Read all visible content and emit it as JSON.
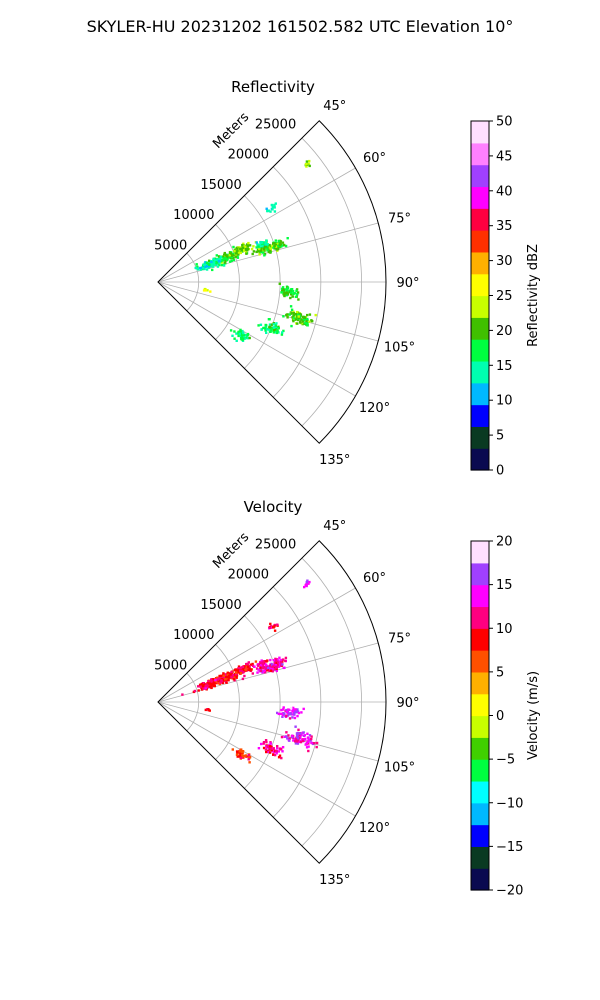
{
  "figure": {
    "title": "SKYLER-HU  20231202  161502.582 UTC Elevation 10°"
  },
  "chart_data": [
    {
      "type": "polar-sector",
      "title": "Reflectivity",
      "range_label": "Meters",
      "theta_range_deg": [
        45,
        135
      ],
      "r_max_m": 28000,
      "theta_ticks": [
        "45°",
        "60°",
        "75°",
        "90°",
        "105°",
        "120°",
        "135°"
      ],
      "theta_tick_values": [
        45,
        60,
        75,
        90,
        105,
        120,
        135
      ],
      "r_ticks": [
        "5000",
        "10000",
        "15000",
        "20000",
        "25000"
      ],
      "r_tick_values": [
        5000,
        10000,
        15000,
        20000,
        25000
      ],
      "grid": true,
      "colorbar": {
        "label": "Reflectivity dBZ",
        "ticks": [
          "0",
          "5",
          "10",
          "15",
          "20",
          "25",
          "30",
          "35",
          "40",
          "45",
          "50"
        ],
        "range": [
          0,
          50
        ],
        "stops": [
          "#0a0a50",
          "#0a3a22",
          "#0000ff",
          "#00b8ff",
          "#00ffb0",
          "#00ff40",
          "#40c000",
          "#c8ff00",
          "#ffff00",
          "#ffb000",
          "#ff3000",
          "#ff0040",
          "#ff00ff",
          "#a040ff",
          "#ff80ff",
          "#ffe0ff"
        ]
      },
      "echoes": [
        {
          "az": 69,
          "r": 8500,
          "dr": 2600,
          "da": 3.5,
          "v": 19,
          "n": 150
        },
        {
          "az": 70,
          "r": 6500,
          "dr": 1800,
          "da": 4,
          "v": 14,
          "n": 80
        },
        {
          "az": 67.5,
          "r": 11200,
          "dr": 1600,
          "da": 2.5,
          "v": 22,
          "n": 70
        },
        {
          "az": 72,
          "r": 14500,
          "dr": 2000,
          "da": 2.5,
          "v": 20,
          "n": 120
        },
        {
          "az": 69,
          "r": 13500,
          "dr": 1000,
          "da": 1.5,
          "v": 15,
          "n": 30
        },
        {
          "az": 56,
          "r": 16800,
          "dr": 800,
          "da": 1.5,
          "v": 15,
          "n": 15
        },
        {
          "az": 51,
          "r": 23500,
          "dr": 600,
          "da": 1,
          "v": 22,
          "n": 10
        },
        {
          "az": 94,
          "r": 16000,
          "dr": 1200,
          "da": 2.5,
          "v": 19,
          "n": 60
        },
        {
          "az": 104,
          "r": 17800,
          "dr": 1800,
          "da": 2.5,
          "v": 20,
          "n": 90
        },
        {
          "az": 112,
          "r": 15000,
          "dr": 1400,
          "da": 2.5,
          "v": 17,
          "n": 60
        },
        {
          "az": 122,
          "r": 12000,
          "dr": 1200,
          "da": 3,
          "v": 16,
          "n": 40
        },
        {
          "az": 98,
          "r": 6000,
          "dr": 600,
          "da": 1.5,
          "v": 25,
          "n": 6
        }
      ]
    },
    {
      "type": "polar-sector",
      "title": "Velocity",
      "range_label": "Meters",
      "theta_range_deg": [
        45,
        135
      ],
      "r_max_m": 28000,
      "theta_ticks": [
        "45°",
        "60°",
        "75°",
        "90°",
        "105°",
        "120°",
        "135°"
      ],
      "theta_tick_values": [
        45,
        60,
        75,
        90,
        105,
        120,
        135
      ],
      "r_ticks": [
        "5000",
        "10000",
        "15000",
        "20000",
        "25000"
      ],
      "r_tick_values": [
        5000,
        10000,
        15000,
        20000,
        25000
      ],
      "grid": true,
      "colorbar": {
        "label": "Velocity (m/s)",
        "ticks": [
          "−20",
          "−15",
          "−10",
          "−5",
          "0",
          "5",
          "10",
          "15",
          "20"
        ],
        "range": [
          -20,
          20
        ],
        "stops": [
          "#0a0a50",
          "#0a3a22",
          "#0000ff",
          "#00b8ff",
          "#00ffff",
          "#00ff40",
          "#40d000",
          "#c8ff00",
          "#ffff00",
          "#ffb000",
          "#ff5000",
          "#ff0000",
          "#ff0080",
          "#ff00ff",
          "#a040ff",
          "#ffe0ff"
        ]
      },
      "echoes": [
        {
          "az": 69,
          "r": 8500,
          "dr": 2600,
          "da": 3.5,
          "v": 9.5,
          "n": 150
        },
        {
          "az": 70,
          "r": 6500,
          "dr": 1800,
          "da": 4,
          "v": 10,
          "n": 80
        },
        {
          "az": 67.5,
          "r": 11200,
          "dr": 1600,
          "da": 2.5,
          "v": 9,
          "n": 70
        },
        {
          "az": 72,
          "r": 14500,
          "dr": 2000,
          "da": 2.5,
          "v": 12.5,
          "n": 120
        },
        {
          "az": 69,
          "r": 13500,
          "dr": 1000,
          "da": 1.5,
          "v": 11,
          "n": 30
        },
        {
          "az": 56,
          "r": 16800,
          "dr": 800,
          "da": 1.5,
          "v": 10,
          "n": 15
        },
        {
          "az": 51,
          "r": 23500,
          "dr": 600,
          "da": 1,
          "v": 15,
          "n": 10
        },
        {
          "az": 94,
          "r": 16000,
          "dr": 1200,
          "da": 2.5,
          "v": 15,
          "n": 60
        },
        {
          "az": 104,
          "r": 17800,
          "dr": 1800,
          "da": 2.5,
          "v": 13.5,
          "n": 90
        },
        {
          "az": 112,
          "r": 15000,
          "dr": 1400,
          "da": 2.5,
          "v": 12,
          "n": 60
        },
        {
          "az": 122,
          "r": 12000,
          "dr": 1200,
          "da": 3,
          "v": 8,
          "n": 40
        },
        {
          "az": 98,
          "r": 6000,
          "dr": 600,
          "da": 1.5,
          "v": 11,
          "n": 6
        }
      ]
    }
  ]
}
